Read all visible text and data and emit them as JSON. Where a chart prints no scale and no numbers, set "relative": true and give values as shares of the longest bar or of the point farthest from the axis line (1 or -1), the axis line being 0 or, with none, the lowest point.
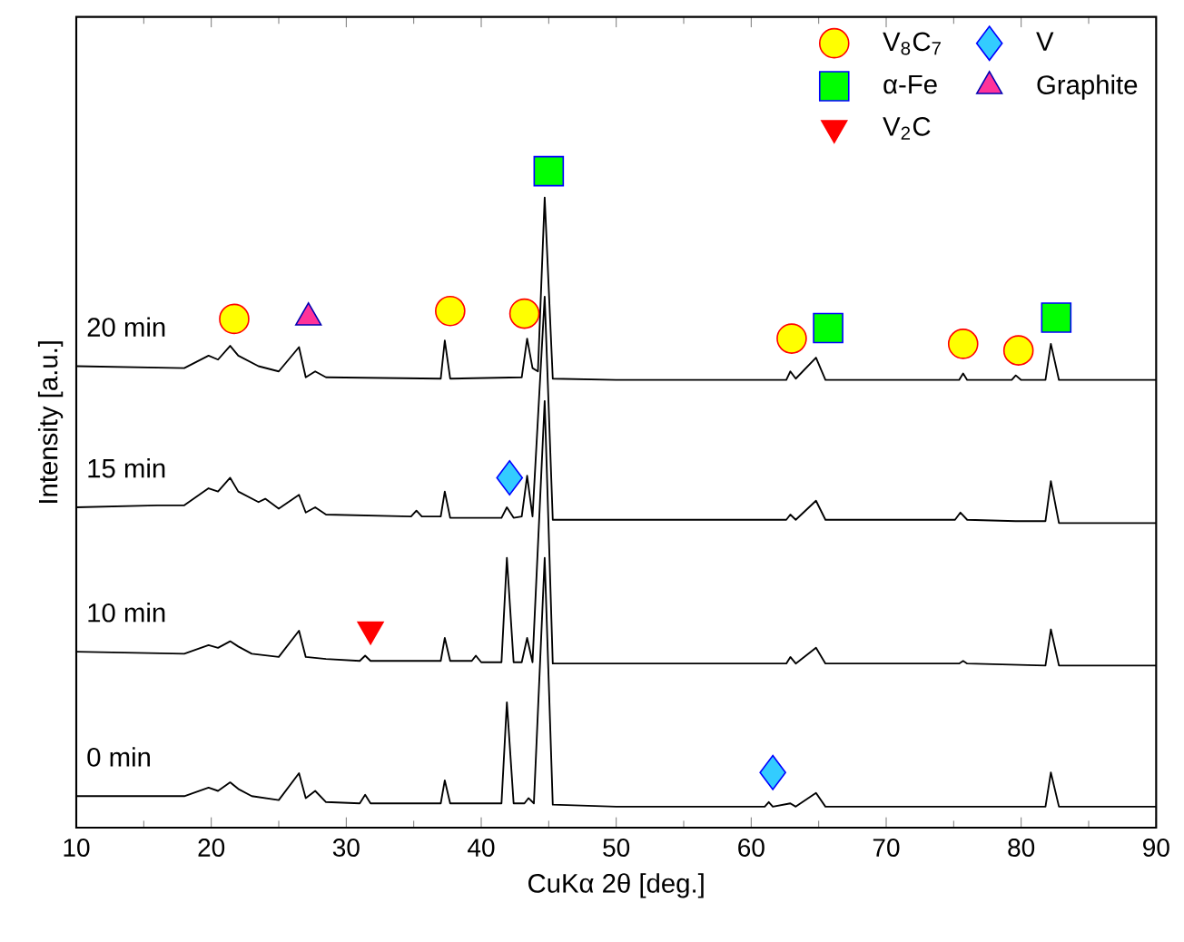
{
  "chart_data": {
    "type": "line",
    "xlabel": "CuKα  2θ [deg.]",
    "ylabel": "Intensity [a.u.]",
    "relative": true,
    "tick_labels": "x",
    "legend": "top right",
    "xlim": [
      10,
      90
    ],
    "xticks": [
      10,
      20,
      30,
      40,
      50,
      60,
      70,
      80,
      90
    ],
    "series": [
      {
        "name": "0 min",
        "color": "#000000",
        "marker": "none",
        "x": [
          10,
          18,
          19.8,
          20.5,
          21.4,
          22,
          23,
          25,
          26.5,
          27,
          27.7,
          28.5,
          31,
          31.4,
          31.8,
          37,
          37.3,
          37.7,
          41.5,
          41.9,
          42.4,
          43.2,
          43.5,
          43.9,
          44.7,
          45.3,
          50,
          61,
          61.3,
          61.6,
          62.9,
          63.3,
          64.8,
          65.5,
          81.8,
          82.2,
          82.8,
          90
        ],
        "values": [
          0.048,
          0.048,
          0.061,
          0.056,
          0.069,
          0.059,
          0.048,
          0.042,
          0.083,
          0.045,
          0.056,
          0.039,
          0.037,
          0.05,
          0.037,
          0.037,
          0.072,
          0.037,
          0.037,
          0.191,
          0.037,
          0.037,
          0.045,
          0.037,
          0.411,
          0.035,
          0.032,
          0.032,
          0.039,
          0.032,
          0.037,
          0.032,
          0.053,
          0.032,
          0.032,
          0.084,
          0.032,
          0.032
        ]
      },
      {
        "name": "10 min",
        "color": "#000000",
        "marker": "none",
        "x": [
          10,
          18,
          19.8,
          20.5,
          21.4,
          22,
          23,
          25,
          26.5,
          27,
          28.5,
          31,
          31.4,
          31.8,
          37,
          37.3,
          37.7,
          39.3,
          39.6,
          40,
          41.5,
          41.9,
          42.4,
          43,
          43.4,
          43.8,
          44.7,
          45.3,
          50,
          62.6,
          62.9,
          63.3,
          64.8,
          65.5,
          75.4,
          75.7,
          76,
          81.8,
          82.2,
          82.8,
          90
        ],
        "values": [
          0.268,
          0.265,
          0.278,
          0.274,
          0.284,
          0.276,
          0.265,
          0.26,
          0.3,
          0.26,
          0.257,
          0.254,
          0.262,
          0.254,
          0.254,
          0.289,
          0.254,
          0.254,
          0.262,
          0.252,
          0.252,
          0.411,
          0.252,
          0.252,
          0.289,
          0.252,
          0.65,
          0.25,
          0.25,
          0.25,
          0.26,
          0.25,
          0.274,
          0.25,
          0.25,
          0.254,
          0.25,
          0.247,
          0.302,
          0.247,
          0.247
        ]
      },
      {
        "name": "15 min",
        "color": "#000000",
        "marker": "none",
        "x": [
          10,
          16,
          18,
          19.8,
          20.5,
          21.4,
          22,
          23.5,
          24,
          25,
          26.5,
          27,
          27.7,
          28.5,
          34.8,
          35.2,
          35.6,
          37,
          37.3,
          37.7,
          41.5,
          41.9,
          42.4,
          43,
          43.4,
          43.8,
          44.7,
          45.3,
          50,
          62.6,
          62.9,
          63.3,
          64.8,
          65.5,
          75.1,
          75.5,
          76,
          79.6,
          81.8,
          82.2,
          82.8,
          90
        ],
        "values": [
          0.488,
          0.491,
          0.491,
          0.517,
          0.512,
          0.533,
          0.512,
          0.496,
          0.501,
          0.486,
          0.507,
          0.48,
          0.488,
          0.477,
          0.474,
          0.483,
          0.474,
          0.474,
          0.512,
          0.472,
          0.472,
          0.488,
          0.472,
          0.474,
          0.536,
          0.474,
          0.809,
          0.469,
          0.469,
          0.469,
          0.477,
          0.469,
          0.498,
          0.469,
          0.469,
          0.48,
          0.469,
          0.467,
          0.467,
          0.528,
          0.464,
          0.464
        ]
      },
      {
        "name": "20 min",
        "color": "#000000",
        "marker": "none",
        "x": [
          10,
          18,
          19.8,
          20.5,
          21.4,
          22,
          23.5,
          25,
          26.5,
          27,
          27.7,
          28.5,
          37,
          37.3,
          37.7,
          43,
          43.4,
          43.8,
          44.2,
          44.7,
          45.3,
          50,
          62.6,
          62.9,
          63.3,
          64.8,
          65.5,
          75.4,
          75.7,
          76,
          79.3,
          79.6,
          80,
          81.8,
          82.2,
          82.8,
          90
        ],
        "values": [
          0.703,
          0.7,
          0.719,
          0.713,
          0.734,
          0.719,
          0.703,
          0.695,
          0.732,
          0.686,
          0.695,
          0.686,
          0.684,
          0.742,
          0.684,
          0.686,
          0.745,
          0.7,
          0.695,
          0.96,
          0.684,
          0.682,
          0.682,
          0.695,
          0.684,
          0.716,
          0.682,
          0.682,
          0.692,
          0.682,
          0.682,
          0.689,
          0.682,
          0.682,
          0.737,
          0.682,
          0.682
        ]
      },
      {
        "name": "V$_{8}$C$_{7}$",
        "type": "scatter",
        "color": "#ffff00",
        "marker": "circle",
        "x": [
          21.7,
          37.7,
          43.2,
          63.0,
          75.7,
          79.8
        ],
        "values": [
          0.775,
          0.787,
          0.783,
          0.745,
          0.737,
          0.727
        ]
      },
      {
        "name": "V",
        "type": "scatter",
        "color": "#33ccff",
        "marker": "diamond",
        "x": [
          42.1,
          61.6
        ],
        "values": [
          0.533,
          0.084
        ]
      },
      {
        "name": "α-Fe",
        "type": "scatter",
        "color": "#00ff00",
        "marker": "square",
        "x": [
          45.0,
          65.7,
          82.6
        ],
        "values": [
          1,
          0.761,
          0.777
        ]
      },
      {
        "name": "Graphite",
        "type": "scatter",
        "color": "#ff3399",
        "marker": "triangle",
        "x": [
          27.2
        ],
        "values": [
          0.777
        ]
      },
      {
        "name": "V$_{2}$C",
        "type": "scatter",
        "color": "#ff0000",
        "marker": "triangle-down",
        "x": [
          31.8
        ],
        "values": [
          0.302
        ]
      }
    ]
  }
}
